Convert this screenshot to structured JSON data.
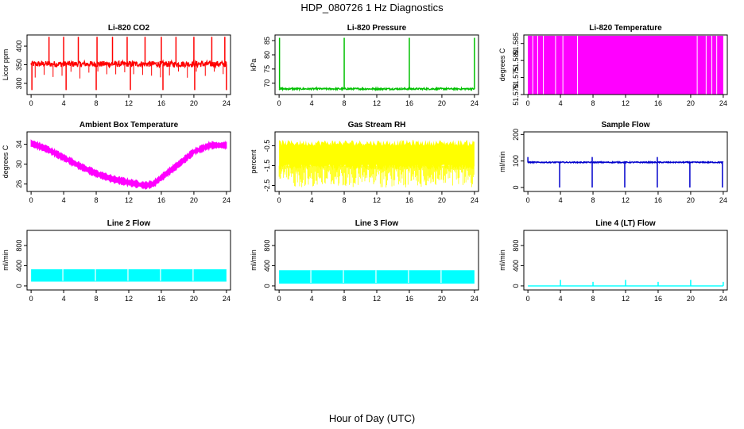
{
  "figure": {
    "title": "HDP_080726  1 Hz Diagnostics",
    "xlabel": "Hour of Day (UTC)"
  },
  "chart_data": [
    {
      "type": "line",
      "title": "Li-820 CO2",
      "ylabel": "Licor ppm",
      "color": "#ff0000",
      "xlim": [
        -0.5,
        24.5
      ],
      "x_ticks": [
        "0",
        "4",
        "8",
        "12",
        "16",
        "20",
        "24"
      ],
      "ylim": [
        270,
        430
      ],
      "y_ticks": [
        "300",
        "350",
        "400"
      ],
      "baseline": 352,
      "noise": 8,
      "spikes_up": [
        2.2,
        4.0,
        5.8,
        8.1,
        10.0,
        11.8,
        14.0,
        16.0,
        17.8,
        20.0,
        22.2,
        23.8
      ],
      "spike_up_value": 425,
      "spikes_down": [
        0.1,
        4.3,
        8.0,
        12.2,
        16.2,
        20.1,
        24.0
      ],
      "spike_down_value": 282
    },
    {
      "type": "line",
      "title": "Li-820 Pressure",
      "ylabel": "kPa",
      "color": "#00c000",
      "xlim": [
        -0.5,
        24.5
      ],
      "x_ticks": [
        "0",
        "4",
        "8",
        "12",
        "16",
        "20",
        "24"
      ],
      "ylim": [
        66,
        87
      ],
      "y_ticks": [
        "70",
        "75",
        "80",
        "85"
      ],
      "baseline": 68,
      "noise": 0.3,
      "spikes_up": [
        0.05,
        8.0,
        16.0,
        24.0
      ],
      "spike_up_value": 86
    },
    {
      "type": "area",
      "title": "Li-820 Temperature",
      "ylabel": "degrees C",
      "color": "#ff00ff",
      "xlim": [
        -0.5,
        24.5
      ],
      "x_ticks": [
        "0",
        "4",
        "8",
        "12",
        "16",
        "20",
        "24"
      ],
      "ylim": [
        51.57,
        51.5875
      ],
      "y_ticks": [
        "51.570",
        "51.575",
        "51.580",
        "51.585"
      ],
      "low": 51.57,
      "high": 51.5875,
      "x_start": 0.0,
      "x_end": 24.0
    },
    {
      "type": "line",
      "title": "Ambient Box Temperature",
      "ylabel": "degrees C",
      "color": "#ff00ff",
      "xlim": [
        -0.5,
        24.5
      ],
      "x_ticks": [
        "0",
        "4",
        "8",
        "12",
        "16",
        "20",
        "24"
      ],
      "ylim": [
        24.5,
        36.5
      ],
      "y_ticks": [
        "26",
        "30",
        "34"
      ],
      "x": [
        0,
        2,
        4,
        6,
        8,
        10,
        12,
        14,
        15,
        16,
        18,
        20,
        22,
        24
      ],
      "values": [
        34.2,
        33.0,
        31.3,
        29.6,
        28.1,
        27.0,
        26.3,
        25.7,
        26.0,
        27.3,
        29.8,
        32.5,
        33.8,
        33.8
      ],
      "band": 1.1
    },
    {
      "type": "line",
      "title": "Gas Stream RH",
      "ylabel": "percent",
      "color": "#ffff00",
      "xlim": [
        -0.5,
        24.5
      ],
      "x_ticks": [
        "0",
        "4",
        "8",
        "12",
        "16",
        "20",
        "24"
      ],
      "ylim": [
        -2.8,
        0.2
      ],
      "y_ticks": [
        "-2.5",
        "-1.5",
        "-0.5"
      ],
      "band_top": -0.35,
      "band_bottom": -1.6,
      "dip_min": -2.6
    },
    {
      "type": "line",
      "title": "Sample Flow",
      "ylabel": "ml/min",
      "color": "#0000cc",
      "xlim": [
        -0.5,
        24.5
      ],
      "x_ticks": [
        "0",
        "4",
        "8",
        "12",
        "16",
        "20",
        "24"
      ],
      "ylim": [
        -15,
        210
      ],
      "y_ticks": [
        "0",
        "100",
        "200"
      ],
      "baseline": 95,
      "noise": 2,
      "spikes_down": [
        3.9,
        7.9,
        11.9,
        15.9,
        19.9,
        23.9
      ],
      "spike_down_value": 0,
      "spikes_up": [
        0.0,
        7.9,
        15.9
      ],
      "spike_up_value": 115
    },
    {
      "type": "area",
      "title": "Line 2 Flow",
      "ylabel": "ml/min",
      "color": "#00ffff",
      "xlim": [
        -0.5,
        24.5
      ],
      "x_ticks": [
        "0",
        "4",
        "8",
        "12",
        "16",
        "20",
        "24"
      ],
      "ylim": [
        -80,
        1100
      ],
      "y_ticks": [
        "0",
        "400",
        "800"
      ],
      "low": 100,
      "high": 330,
      "x_start": 0.0,
      "x_end": 24.0,
      "gaps": [
        3.9,
        7.9,
        11.9,
        15.9,
        19.9
      ]
    },
    {
      "type": "area",
      "title": "Line 3 Flow",
      "ylabel": "ml/min",
      "color": "#00ffff",
      "xlim": [
        -0.5,
        24.5
      ],
      "x_ticks": [
        "0",
        "4",
        "8",
        "12",
        "16",
        "20",
        "24"
      ],
      "ylim": [
        -80,
        1100
      ],
      "y_ticks": [
        "0",
        "400",
        "800"
      ],
      "low": 60,
      "high": 310,
      "x_start": 0.0,
      "x_end": 24.0,
      "gaps": [
        3.9,
        7.9,
        11.9,
        15.9,
        19.9
      ]
    },
    {
      "type": "line",
      "title": "Line 4 (LT) Flow",
      "ylabel": "ml/min",
      "color": "#00ffff",
      "xlim": [
        -0.5,
        24.5
      ],
      "x_ticks": [
        "0",
        "4",
        "8",
        "12",
        "16",
        "20",
        "24"
      ],
      "ylim": [
        -80,
        1100
      ],
      "y_ticks": [
        "0",
        "400",
        "800"
      ],
      "baseline": 0,
      "spikes_up": [
        4.0,
        8.0,
        12.0,
        16.0,
        20.0,
        24.0
      ],
      "spike_up_values": [
        120,
        80,
        120,
        80,
        120,
        80
      ]
    }
  ]
}
